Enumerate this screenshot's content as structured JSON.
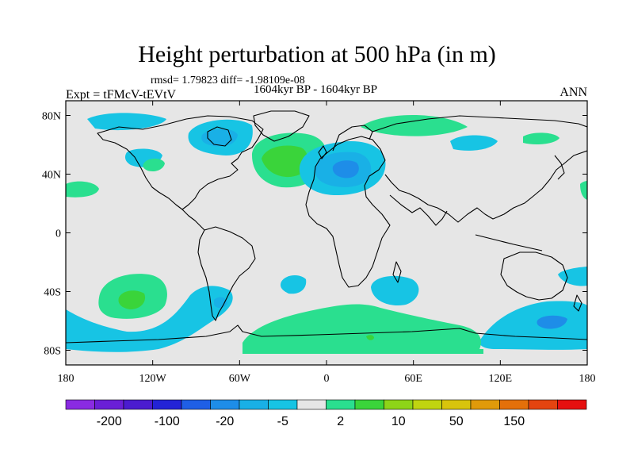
{
  "title": "Height perturbation at 500 hPa (in m)",
  "stats": "rmsd= 1.79823 diff= -1.98109e-08",
  "period": "1604kyr BP - 1604kyr BP",
  "experiment": "Expt = tFMcV-tEVtV",
  "season": "ANN",
  "map": {
    "projection": "cylindrical-equidistant",
    "lon_range": [
      -180,
      180
    ],
    "lat_range": [
      -90,
      90
    ],
    "background_color": "#e6e6e6",
    "coastline_color": "#000000",
    "x_ticks": [
      "180",
      "120W",
      "60W",
      "0",
      "60E",
      "120E",
      "180"
    ],
    "y_ticks": [
      "80N",
      "40N",
      "0",
      "40S",
      "80S"
    ]
  },
  "colorbar": {
    "labels": [
      "-200",
      "-100",
      "-20",
      "-5",
      "2",
      "10",
      "50",
      "150"
    ],
    "colors": [
      "#8a2be2",
      "#6a1fd6",
      "#4b1ccf",
      "#2323d6",
      "#1f5fe6",
      "#1e8de8",
      "#19b0e6",
      "#17c4e4",
      "#e6e6e6",
      "#2adf8f",
      "#3ad43a",
      "#8ed418",
      "#c0d410",
      "#d8c40c",
      "#e09a0a",
      "#e4700a",
      "#e44410",
      "#e61010"
    ]
  },
  "chart_data": {
    "type": "heatmap",
    "title": "Height perturbation at 500 hPa (in m)",
    "levels": [
      -200,
      -100,
      -20,
      -5,
      2,
      10,
      50,
      150
    ],
    "regions": [
      {
        "name": "north-atlantic-positive",
        "lon": -35,
        "lat": 48,
        "value": 8
      },
      {
        "name": "europe-negative",
        "lon": 18,
        "lat": 45,
        "value": -10
      },
      {
        "name": "canada-negative",
        "lon": -85,
        "lat": 62,
        "value": -4
      },
      {
        "name": "southeast-pacific-positive",
        "lon": -128,
        "lat": -42,
        "value": 6
      },
      {
        "name": "antarctic-positive",
        "lon": 20,
        "lat": -68,
        "value": 4
      },
      {
        "name": "southwest-pacific-negative",
        "lon": 160,
        "lat": -62,
        "value": -6
      }
    ]
  }
}
